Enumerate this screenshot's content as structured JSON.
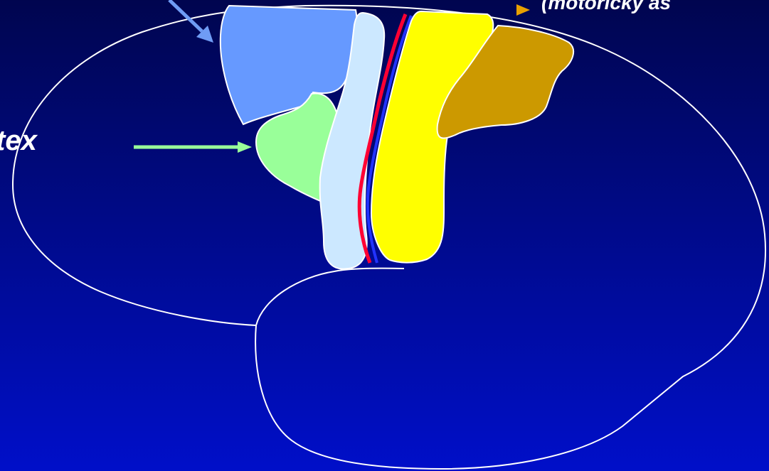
{
  "labels": {
    "left_cut_text": "tex",
    "top_right_cut_text": "(motoricky as"
  },
  "colors": {
    "background_top": "#00054f",
    "background_bottom": "#000fc9",
    "outline": "#ffffff",
    "region_blue": "#6699ff",
    "region_green": "#99ff99",
    "region_light_blue": "#cce8ff",
    "region_yellow": "#ffff00",
    "region_ochre": "#cc9900",
    "central_line_red": "#ff0033",
    "central_line_blue": "#2233ff",
    "arrow_blue": "#6f9cf5",
    "arrow_green": "#99ff99",
    "bullet_orange": "#e8a000"
  }
}
